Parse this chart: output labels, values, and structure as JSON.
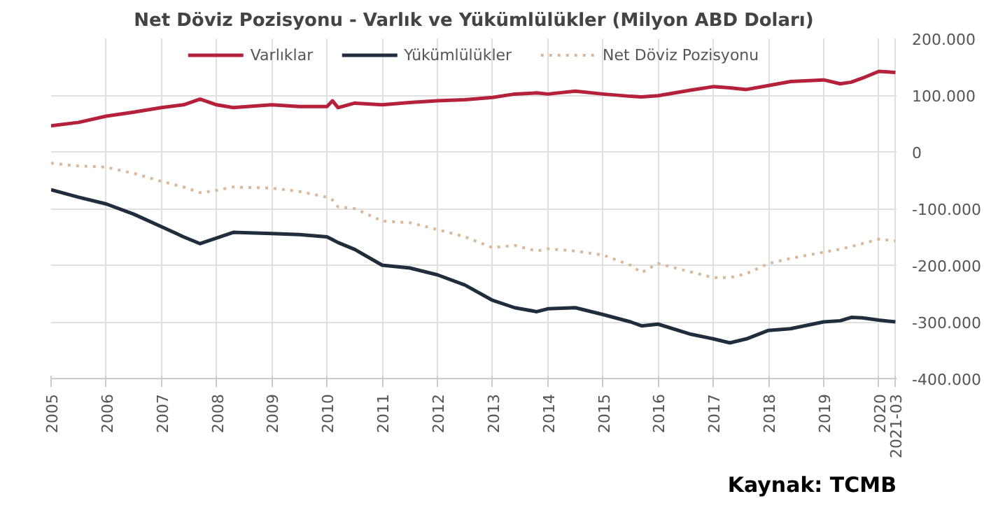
{
  "chart_data": {
    "type": "line",
    "title": "Net Döviz Pozisyonu - Varlık ve Yükümlülükler (Milyon ABD Doları)",
    "annotations": [
      "Kaynak: TCMB"
    ],
    "x": [
      2005,
      2005.5,
      2006,
      2006.5,
      2007,
      2007.4,
      2007.7,
      2008,
      2008.3,
      2009,
      2009.5,
      2010,
      2010.1,
      2010.2,
      2010.5,
      2011,
      2011.5,
      2012,
      2012.5,
      2013,
      2013.4,
      2013.8,
      2014,
      2014.5,
      2015,
      2015.5,
      2015.7,
      2016,
      2016.6,
      2017,
      2017.3,
      2017.6,
      2018,
      2018.4,
      2019,
      2019.3,
      2019.5,
      2019.7,
      2020,
      2020.3
    ],
    "series": [
      {
        "name": "Varlıklar",
        "color": "#b5213a",
        "values": [
          46000,
          52000,
          63000,
          70000,
          78000,
          83000,
          93000,
          83000,
          78000,
          83000,
          80000,
          80000,
          90000,
          78000,
          86000,
          83000,
          87000,
          90000,
          92000,
          96000,
          102000,
          104000,
          102000,
          107000,
          102000,
          98000,
          97000,
          99000,
          109000,
          115000,
          113000,
          110000,
          117000,
          124000,
          127000,
          120000,
          123000,
          130000,
          142000,
          140000
        ]
      },
      {
        "name": "Yükümlülükler",
        "color": "#1f2d3d",
        "values": [
          -67000,
          -80000,
          -92000,
          -110000,
          -132000,
          -150000,
          -162000,
          -152000,
          -142000,
          -144000,
          -146000,
          -150000,
          -155000,
          -160000,
          -172000,
          -200000,
          -205000,
          -217000,
          -235000,
          -262000,
          -275000,
          -282000,
          -277000,
          -275000,
          -287000,
          -300000,
          -307000,
          -304000,
          -322000,
          -330000,
          -337000,
          -330000,
          -315000,
          -312000,
          -300000,
          -298000,
          -292000,
          -293000,
          -297000,
          -300000
        ]
      },
      {
        "name": "Net Döviz Pozisyonu",
        "color": "#d9b99b",
        "line_style": "dotted",
        "values": [
          -20000,
          -25000,
          -27000,
          -38000,
          -52000,
          -62000,
          -72000,
          -68000,
          -62000,
          -64000,
          -70000,
          -80000,
          -85000,
          -97000,
          -100000,
          -122000,
          -125000,
          -137000,
          -150000,
          -169000,
          -165000,
          -175000,
          -171000,
          -175000,
          -182000,
          -200000,
          -213000,
          -197000,
          -212000,
          -222000,
          -222000,
          -215000,
          -197000,
          -188000,
          -177000,
          -172000,
          -167000,
          -162000,
          -154000,
          -157000
        ]
      }
    ],
    "xlim": [
      2005,
      2020.32
    ],
    "xticks": [
      2005,
      2006,
      2007,
      2008,
      2009,
      2010,
      2011,
      2012,
      2013,
      2014,
      2015,
      2016,
      2017,
      2018,
      2019,
      2020,
      {
        "value": 2020.3,
        "label": "2021-03"
      }
    ],
    "ylim": [
      -400000,
      200000
    ],
    "yticks": [
      {
        "value": -400000,
        "label": "-400.000"
      },
      {
        "value": -300000,
        "label": "-300.000"
      },
      {
        "value": -200000,
        "label": "-200.000"
      },
      {
        "value": -100000,
        "label": "-100.000"
      },
      0,
      {
        "value": 100000,
        "label": "100.000"
      },
      {
        "value": 200000,
        "label": "200.000"
      }
    ],
    "grid": true,
    "legend": "top",
    "line_style": "solid",
    "marker": "none"
  }
}
